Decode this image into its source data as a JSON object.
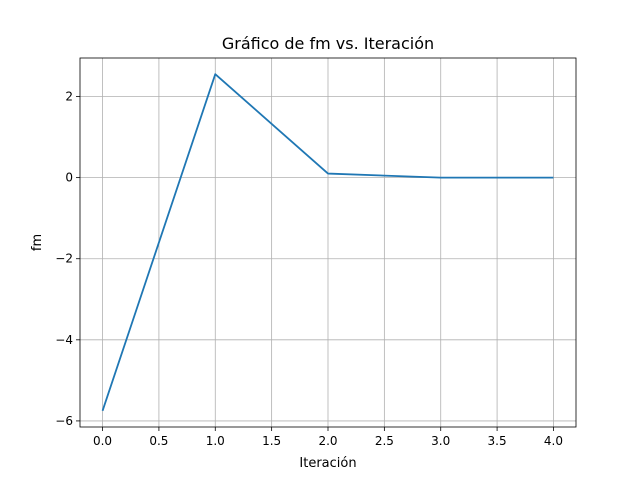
{
  "chart_data": {
    "type": "line",
    "title": "Gráfico de fm vs. Iteración",
    "xlabel": "Iteración",
    "ylabel": "fm",
    "x": [
      0,
      1,
      2,
      3,
      4
    ],
    "series": [
      {
        "values": [
          -5.75,
          2.55,
          0.1,
          0.0,
          0.0
        ],
        "color": "#1f77b4"
      }
    ],
    "xlim": [
      -0.2,
      4.2
    ],
    "ylim": [
      -6.15,
      2.95
    ],
    "xticks": [
      0.0,
      0.5,
      1.0,
      1.5,
      2.0,
      2.5,
      3.0,
      3.5,
      4.0
    ],
    "xtick_labels": [
      "0.0",
      "0.5",
      "1.0",
      "1.5",
      "2.0",
      "2.5",
      "3.0",
      "3.5",
      "4.0"
    ],
    "yticks": [
      -6,
      -4,
      -2,
      0,
      2
    ],
    "ytick_labels": [
      "−6",
      "−4",
      "−2",
      "0",
      "2"
    ],
    "grid": true,
    "legend": "none"
  }
}
